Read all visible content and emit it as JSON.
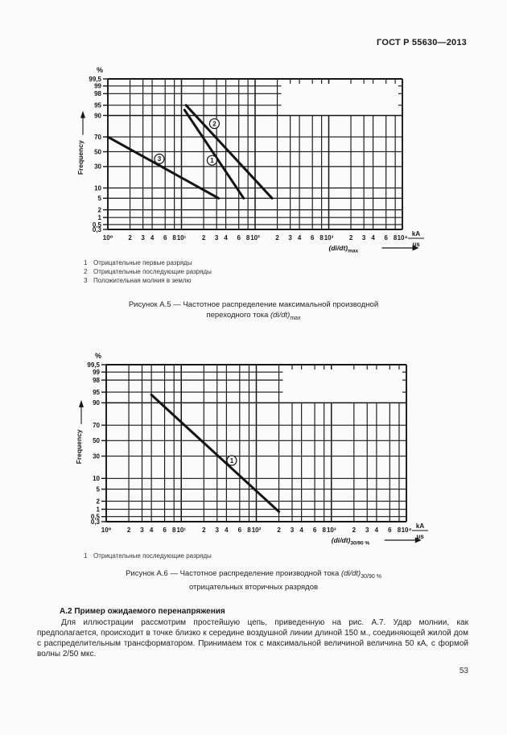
{
  "header": {
    "doc_number": "ГОСТ Р 55630—2013"
  },
  "page_number": "53",
  "chart_data": [
    {
      "figure": "Рисунок А.5",
      "type": "line",
      "title": "Частотное распределение максимальной производной переходного тока (di/dt)max",
      "y_axis": {
        "unit": "%",
        "label": "Frequency",
        "scale": "normal-probability",
        "ticks": [
          99.5,
          99,
          98,
          95,
          90,
          70,
          50,
          30,
          10,
          5,
          2,
          1,
          0.5,
          0.3
        ],
        "tick_labels": [
          "99,5",
          "99",
          "98",
          "95",
          "90",
          "70",
          "50",
          "30",
          "10",
          "5",
          "2",
          "1",
          "0,5",
          "0,3"
        ],
        "ylim": [
          0.3,
          99.5
        ]
      },
      "x_axis": {
        "scale": "log",
        "xlim": [
          1,
          10000
        ],
        "major_ticks": [
          1,
          10,
          100,
          1000,
          10000
        ],
        "major_tick_labels": [
          "10⁰",
          "10¹",
          "10²",
          "10³",
          "10⁴"
        ],
        "minor_tick_labels": [
          "2",
          "3",
          "4",
          "6",
          "8"
        ],
        "unit_numerator": "kA",
        "unit_denominator": "μs",
        "title_base": "(di/dt)",
        "title_sub": "max"
      },
      "grid_blank_from_x": 200,
      "grid_blank_above_percent": 90,
      "series": [
        {
          "num": "1",
          "name": "Отрицательные первые разряды",
          "points": [
            [
              11,
              93
            ],
            [
              70,
              5
            ]
          ],
          "marker_at": [
            26,
            38
          ]
        },
        {
          "num": "2",
          "name": "Отрицательные последующие разряды",
          "points": [
            [
              11.5,
              95
            ],
            [
              170,
              5
            ]
          ],
          "marker_at": [
            28,
            84
          ]
        },
        {
          "num": "3",
          "name": "Положительная молния в землю",
          "points": [
            [
              1,
              70
            ],
            [
              32,
              5
            ]
          ],
          "marker_at": [
            5,
            40
          ]
        }
      ],
      "caption": {
        "line1": "Рисунок А.5 — Частотное распределение максимальной производной",
        "line2_pre": "переходного тока ",
        "formula_base": "(di/dt)",
        "formula_sub": "max"
      }
    },
    {
      "figure": "Рисунок А.6",
      "type": "line",
      "title": "Частотное распределение производной тока (di/dt)30/90 % отрицательных вторичных разрядов",
      "y_axis": {
        "unit": "%",
        "label": "Frequency",
        "scale": "normal-probability",
        "ticks": [
          99.5,
          99,
          98,
          95,
          90,
          70,
          50,
          30,
          10,
          5,
          2,
          1,
          0.5,
          0.3
        ],
        "tick_labels": [
          "99,5",
          "99",
          "98",
          "95",
          "90",
          "70",
          "50",
          "30",
          "10",
          "5",
          "2",
          "1",
          "0,5",
          "0,3"
        ],
        "ylim": [
          0.3,
          99.5
        ]
      },
      "x_axis": {
        "scale": "log",
        "xlim": [
          1,
          10000
        ],
        "major_ticks": [
          1,
          10,
          100,
          1000,
          10000
        ],
        "major_tick_labels": [
          "10⁰",
          "10¹",
          "10²",
          "10³",
          "10⁴"
        ],
        "minor_tick_labels": [
          "2",
          "3",
          "4",
          "6",
          "8"
        ],
        "unit_numerator": "kA",
        "unit_denominator": "μs",
        "title_base": "(di/dt)",
        "title_sub": "30/90 %"
      },
      "grid_blank_from_x": 200,
      "grid_blank_above_percent": 90,
      "series": [
        {
          "num": "1",
          "name": "Отрицательные последующие разряды",
          "points": [
            [
              4,
              94
            ],
            [
              200,
              0.8
            ]
          ],
          "marker_at": [
            47,
            25
          ]
        }
      ],
      "caption": {
        "line1_pre": "Рисунок А.6 — Частотное распределение производной тока ",
        "formula_base": "(di/dt)",
        "formula_sub": "30/90 %",
        "line2": "отрицательных вторичных разрядов"
      }
    }
  ],
  "section": {
    "heading": "А.2 Пример ожидаемого перенапряжения",
    "paragraph": "Для иллюстрации рассмотрим простейшую цепь, приведенную на рис. А.7. Удар молнии, как предполагается, происходит в точке близко к середине воздушной линии длиной 150 м., соединяющей жилой дом с распределительным трансформатором. Принимаем ток с максимальной величиной величина 50 кА, с формой волны 2/50 мкс."
  }
}
